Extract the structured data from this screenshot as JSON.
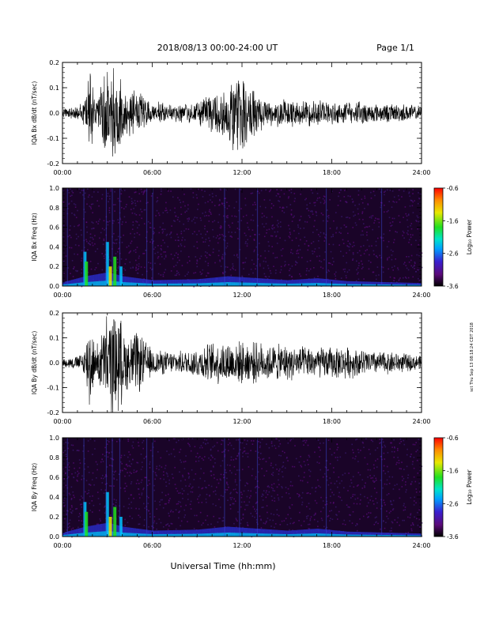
{
  "header": {
    "title": "2018/08/13  00:00-24:00 UT",
    "page": "Page 1/1"
  },
  "footer": {
    "xlabel": "Universal Time (hh:mm)"
  },
  "side_note": "sct Thu Sep 13 08:18:24 CDT 2018",
  "colorbar": {
    "label": "Log₁₀ Power",
    "ticks": [
      "-0.6",
      "-1.6",
      "-2.6",
      "-3.6"
    ],
    "colors": [
      "#000000",
      "#5b0a7a",
      "#3a1fd0",
      "#00a0ff",
      "#00e5c8",
      "#20e020",
      "#e8e800",
      "#ff8800",
      "#ff0000"
    ]
  },
  "chart_data": [
    {
      "type": "line",
      "title": "",
      "xlabel": "",
      "ylabel": "IQA Bx dB/dt (nT/sec)",
      "xlim": [
        "00:00",
        "24:00"
      ],
      "ylim": [
        -0.2,
        0.2
      ],
      "xticks": [
        "00:00",
        "06:00",
        "12:00",
        "18:00",
        "24:00"
      ],
      "yticks": [
        "-0.2",
        "-0.1",
        "0.0",
        "0.1",
        "0.2"
      ],
      "series": [
        {
          "x_hours": [
            0,
            1,
            1.5,
            1.8,
            2.2,
            3.0,
            3.4,
            3.8,
            4.2,
            5.0,
            6.0,
            7.0,
            8.0,
            9.0,
            10.0,
            11.0,
            11.7,
            12.5,
            13.0,
            14.0,
            15.0,
            16.0,
            17.0,
            18.0,
            19.0,
            20.0,
            21.0,
            22.0,
            23.0,
            24.0
          ],
          "envelope": [
            0.02,
            0.03,
            0.06,
            0.22,
            0.06,
            0.22,
            0.22,
            0.22,
            0.1,
            0.1,
            0.05,
            0.04,
            0.04,
            0.05,
            0.09,
            0.12,
            0.18,
            0.15,
            0.08,
            0.06,
            0.06,
            0.05,
            0.06,
            0.05,
            0.05,
            0.05,
            0.04,
            0.04,
            0.04,
            0.03
          ]
        }
      ]
    },
    {
      "type": "heatmap",
      "title": "",
      "xlabel": "",
      "ylabel": "IQA Bx Freq (Hz)",
      "xlim": [
        "00:00",
        "24:00"
      ],
      "ylim": [
        0.0,
        1.0
      ],
      "zlim": [
        -3.6,
        -0.6
      ],
      "xticks": [
        "00:00",
        "06:00",
        "12:00",
        "18:00",
        "24:00"
      ],
      "yticks": [
        "0.0",
        "0.2",
        "0.4",
        "0.6",
        "0.8",
        "1.0"
      ]
    },
    {
      "type": "line",
      "title": "",
      "xlabel": "",
      "ylabel": "IQA By dB/dt (nT/sec)",
      "xlim": [
        "00:00",
        "24:00"
      ],
      "ylim": [
        -0.2,
        0.2
      ],
      "xticks": [
        "00:00",
        "06:00",
        "12:00",
        "18:00",
        "24:00"
      ],
      "yticks": [
        "-0.2",
        "-0.1",
        "0.0",
        "0.1",
        "0.2"
      ],
      "series": [
        {
          "x_hours": [
            0,
            1,
            1.5,
            1.8,
            2.2,
            3.0,
            3.4,
            3.8,
            4.2,
            5.0,
            6.0,
            7.0,
            8.0,
            9.0,
            10.0,
            11.0,
            12.0,
            13.0,
            14.0,
            15.0,
            16.0,
            17.0,
            18.0,
            19.0,
            20.0,
            21.0,
            22.0,
            23.0,
            24.0
          ],
          "envelope": [
            0.02,
            0.03,
            0.06,
            0.22,
            0.06,
            0.22,
            0.22,
            0.22,
            0.12,
            0.14,
            0.06,
            0.05,
            0.05,
            0.07,
            0.09,
            0.1,
            0.09,
            0.09,
            0.08,
            0.08,
            0.07,
            0.07,
            0.07,
            0.07,
            0.06,
            0.05,
            0.05,
            0.04,
            0.03
          ]
        }
      ]
    },
    {
      "type": "heatmap",
      "title": "",
      "xlabel": "",
      "ylabel": "IQA By Freq (Hz)",
      "xlim": [
        "00:00",
        "24:00"
      ],
      "ylim": [
        0.0,
        1.0
      ],
      "zlim": [
        -3.6,
        -0.6
      ],
      "xticks": [
        "00:00",
        "06:00",
        "12:00",
        "18:00",
        "24:00"
      ],
      "yticks": [
        "0.0",
        "0.2",
        "0.4",
        "0.6",
        "0.8",
        "1.0"
      ]
    }
  ]
}
